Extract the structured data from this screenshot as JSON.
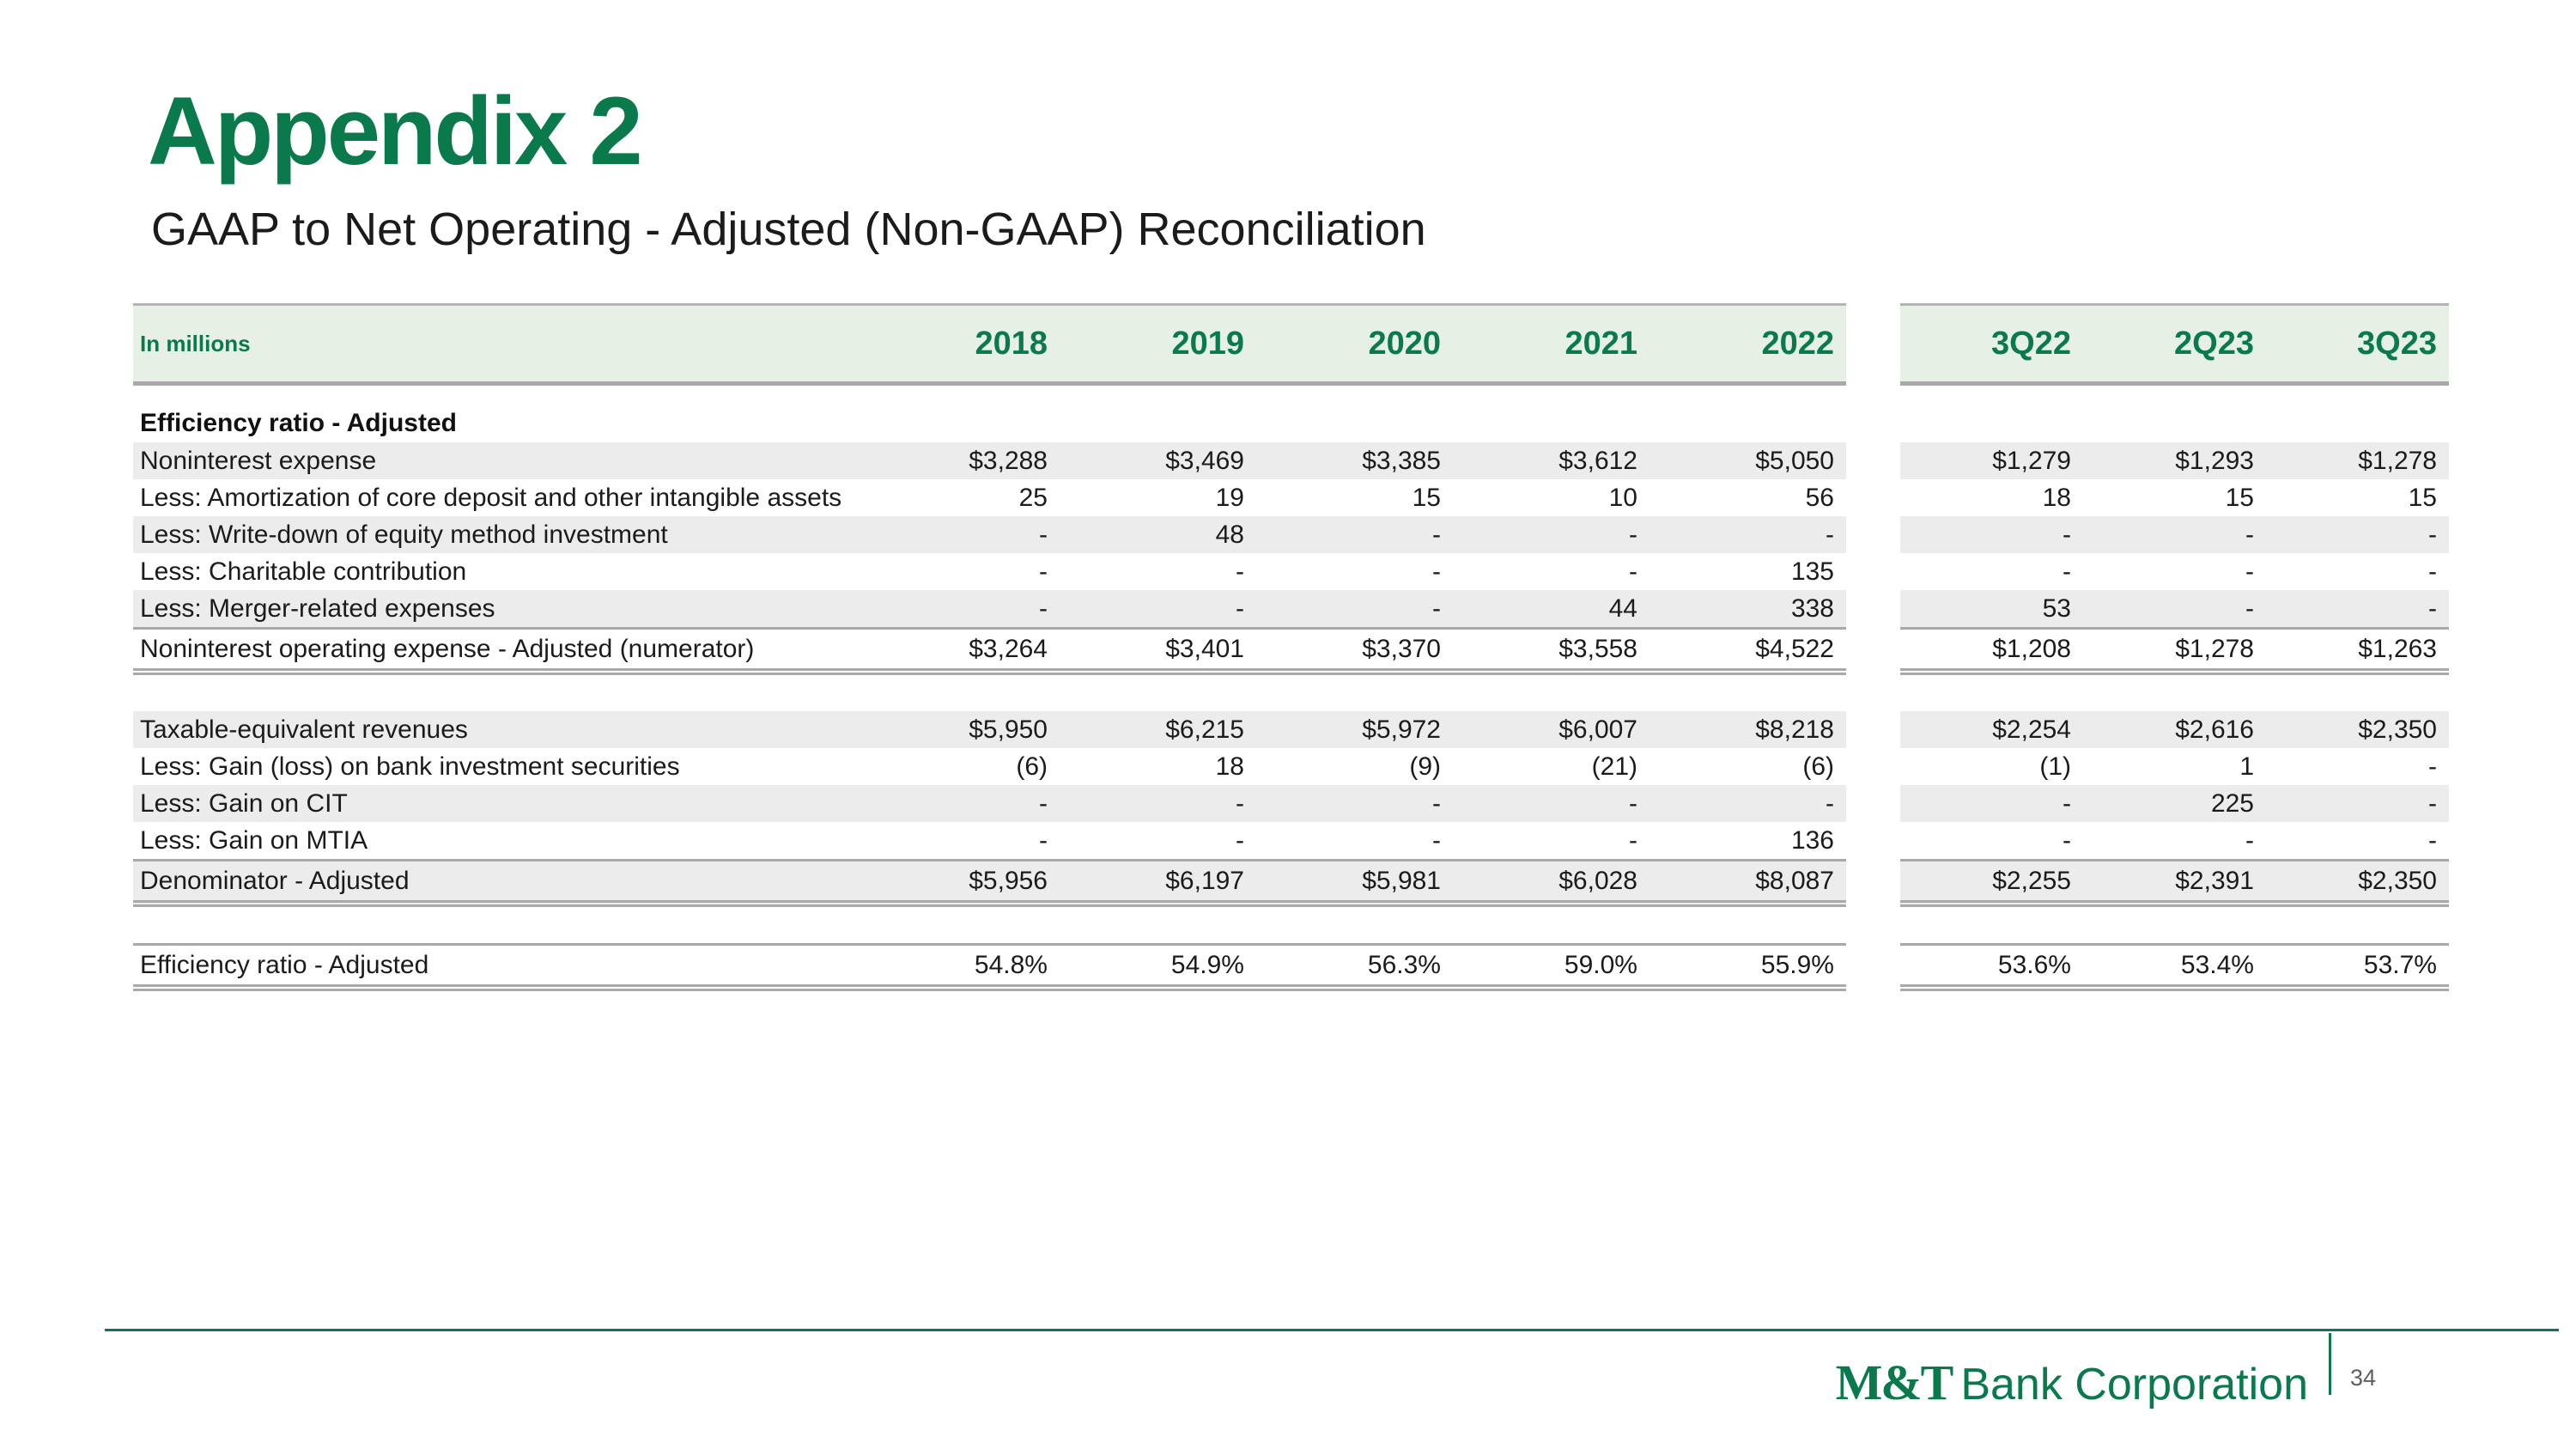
{
  "slide": {
    "title": "Appendix 2",
    "subtitle": "GAAP to Net Operating - Adjusted (Non-GAAP) Reconciliation"
  },
  "colors": {
    "brand_green": "#0a7a4c",
    "header_bg": "#e6f0e5",
    "border_gray": "#a9a9a9",
    "stripe_gray": "#ececec",
    "text_ink": "#1b1b1b",
    "page_number_gray": "#5f5f5f"
  },
  "table": {
    "unit_label": "In millions",
    "year_columns": [
      "2018",
      "2019",
      "2020",
      "2021",
      "2022"
    ],
    "quarter_columns": [
      "3Q22",
      "2Q23",
      "3Q23"
    ],
    "rows": [
      {
        "kind": "section",
        "label": "Efficiency ratio - Adjusted"
      },
      {
        "kind": "data",
        "stripe": true,
        "label": "Noninterest expense",
        "years": [
          "$3,288",
          "$3,469",
          "$3,385",
          "$3,612",
          "$5,050"
        ],
        "quarters": [
          "$1,279",
          "$1,293",
          "$1,278"
        ]
      },
      {
        "kind": "data",
        "stripe": false,
        "label": "Less: Amortization of core deposit and other intangible assets",
        "years": [
          "25",
          "19",
          "15",
          "10",
          "56"
        ],
        "quarters": [
          "18",
          "15",
          "15"
        ]
      },
      {
        "kind": "data",
        "stripe": true,
        "label": "Less: Write-down of equity method investment",
        "years": [
          "-",
          "48",
          "-",
          "-",
          "-"
        ],
        "quarters": [
          "-",
          "-",
          "-"
        ]
      },
      {
        "kind": "data",
        "stripe": false,
        "label": "Less: Charitable contribution",
        "years": [
          "-",
          "-",
          "-",
          "-",
          "135"
        ],
        "quarters": [
          "-",
          "-",
          "-"
        ]
      },
      {
        "kind": "data",
        "stripe": true,
        "label": "Less: Merger-related expenses",
        "years": [
          "-",
          "-",
          "-",
          "44",
          "338"
        ],
        "quarters": [
          "53",
          "-",
          "-"
        ]
      },
      {
        "kind": "total",
        "stripe": false,
        "label": "Noninterest operating expense - Adjusted (numerator)",
        "years": [
          "$3,264",
          "$3,401",
          "$3,370",
          "$3,558",
          "$4,522"
        ],
        "quarters": [
          "$1,208",
          "$1,278",
          "$1,263"
        ]
      },
      {
        "kind": "gap"
      },
      {
        "kind": "data",
        "stripe": true,
        "label": "Taxable-equivalent revenues",
        "years": [
          "$5,950",
          "$6,215",
          "$5,972",
          "$6,007",
          "$8,218"
        ],
        "quarters": [
          "$2,254",
          "$2,616",
          "$2,350"
        ]
      },
      {
        "kind": "data",
        "stripe": false,
        "label": "Less: Gain (loss) on bank investment securities",
        "years": [
          "(6)",
          "18",
          "(9)",
          "(21)",
          "(6)"
        ],
        "quarters": [
          "(1)",
          "1",
          "-"
        ]
      },
      {
        "kind": "data",
        "stripe": true,
        "label": "Less: Gain on CIT",
        "years": [
          "-",
          "-",
          "-",
          "-",
          "-"
        ],
        "quarters": [
          "-",
          "225",
          "-"
        ]
      },
      {
        "kind": "data",
        "stripe": false,
        "label": "Less: Gain on MTIA",
        "years": [
          "-",
          "-",
          "-",
          "-",
          "136"
        ],
        "quarters": [
          "-",
          "-",
          "-"
        ]
      },
      {
        "kind": "total",
        "stripe": true,
        "label": "Denominator - Adjusted",
        "years": [
          "$5,956",
          "$6,197",
          "$5,981",
          "$6,028",
          "$8,087"
        ],
        "quarters": [
          "$2,255",
          "$2,391",
          "$2,350"
        ]
      },
      {
        "kind": "gap"
      },
      {
        "kind": "total",
        "stripe": false,
        "label": "Efficiency ratio - Adjusted",
        "years": [
          "54.8%",
          "54.9%",
          "56.3%",
          "59.0%",
          "55.9%"
        ],
        "quarters": [
          "53.6%",
          "53.4%",
          "53.7%"
        ]
      }
    ]
  },
  "footer": {
    "logo_mt": "M&T",
    "logo_rest": "Bank Corporation",
    "page_number": "34"
  }
}
